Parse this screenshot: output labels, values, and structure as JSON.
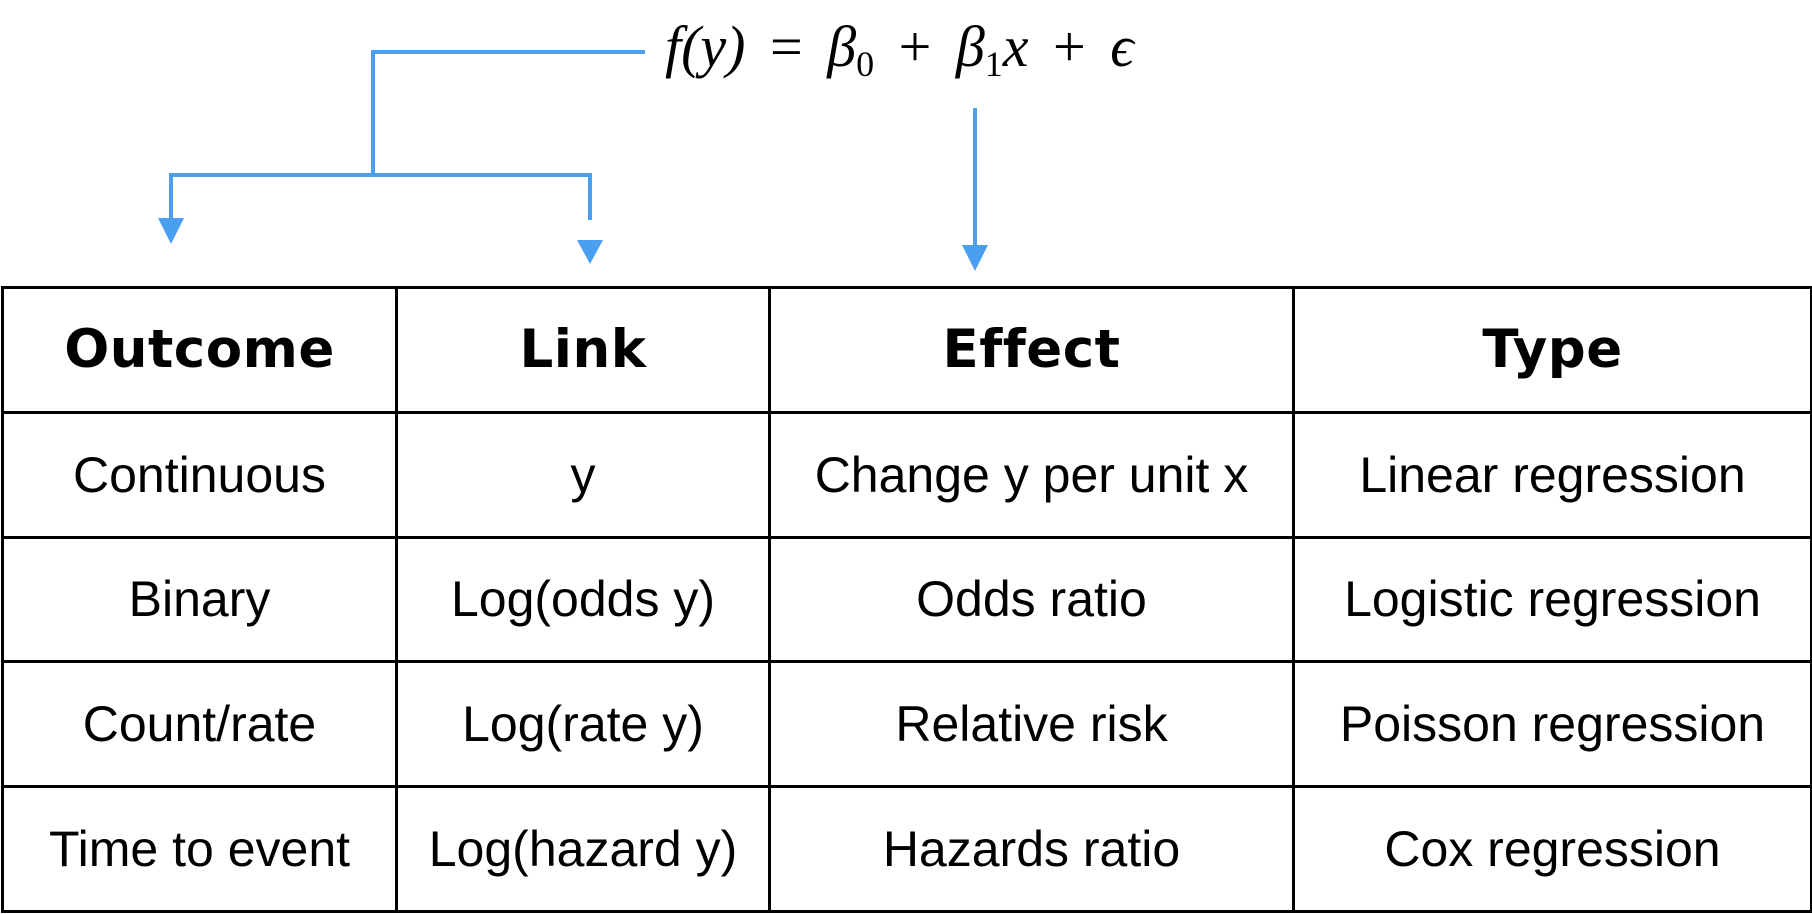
{
  "formula": {
    "lhs": "f(y)",
    "equals": "=",
    "beta0": "β",
    "beta0_sub": "0",
    "plus1": "+",
    "beta1": "β",
    "beta1_sub": "1",
    "x": "x",
    "plus2": "+",
    "epsilon": "ϵ"
  },
  "colors": {
    "arrow": "#4A9FF0",
    "border": "#000000"
  },
  "table": {
    "headers": [
      "Outcome",
      "Link",
      "Effect",
      "Type"
    ],
    "rows": [
      [
        "Continuous",
        "y",
        "Change y per unit x",
        "Linear regression"
      ],
      [
        "Binary",
        "Log(odds y)",
        "Odds ratio",
        "Logistic regression"
      ],
      [
        "Count/rate",
        "Log(rate y)",
        "Relative risk",
        "Poisson regression"
      ],
      [
        "Time to event",
        "Log(hazard y)",
        "Hazards ratio",
        "Cox regression"
      ]
    ]
  }
}
